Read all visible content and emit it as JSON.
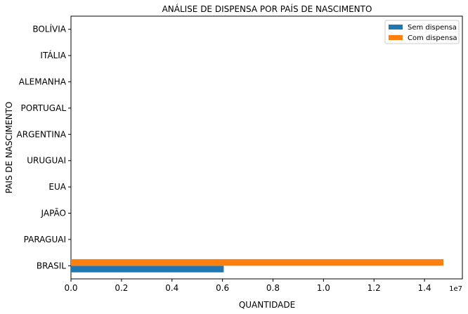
{
  "chart_data": {
    "type": "bar",
    "orientation": "horizontal",
    "title": "ANÁLISE DE DISPENSA POR PAÍS DE NASCIMENTO",
    "xlabel": "QUANTIDADE",
    "ylabel": "PAIS DE NASCIMENTO",
    "x_offset_label": "1e7",
    "xlim": [
      0,
      1.55
    ],
    "x_ticks": [
      "0.0",
      "0.2",
      "0.4",
      "0.6",
      "0.8",
      "1.0",
      "1.2",
      "1.4"
    ],
    "categories": [
      "BRASIL",
      "PARAGUAI",
      "JAPÃO",
      "EUA",
      "URUGUAI",
      "ARGENTINA",
      "PORTUGAL",
      "ALEMANHA",
      "ITÁLIA",
      "BOLÍVIA"
    ],
    "series": [
      {
        "name": "Sem dispensa",
        "color": "#1f77b4",
        "values": [
          0.605,
          0,
          0,
          0,
          0,
          0,
          0,
          0,
          0,
          0
        ]
      },
      {
        "name": "Com dispensa",
        "color": "#ff7f0e",
        "values": [
          1.475,
          0,
          0,
          0,
          0,
          0,
          0,
          0,
          0,
          0
        ]
      }
    ],
    "legend_position": "top-right",
    "grid": false
  }
}
